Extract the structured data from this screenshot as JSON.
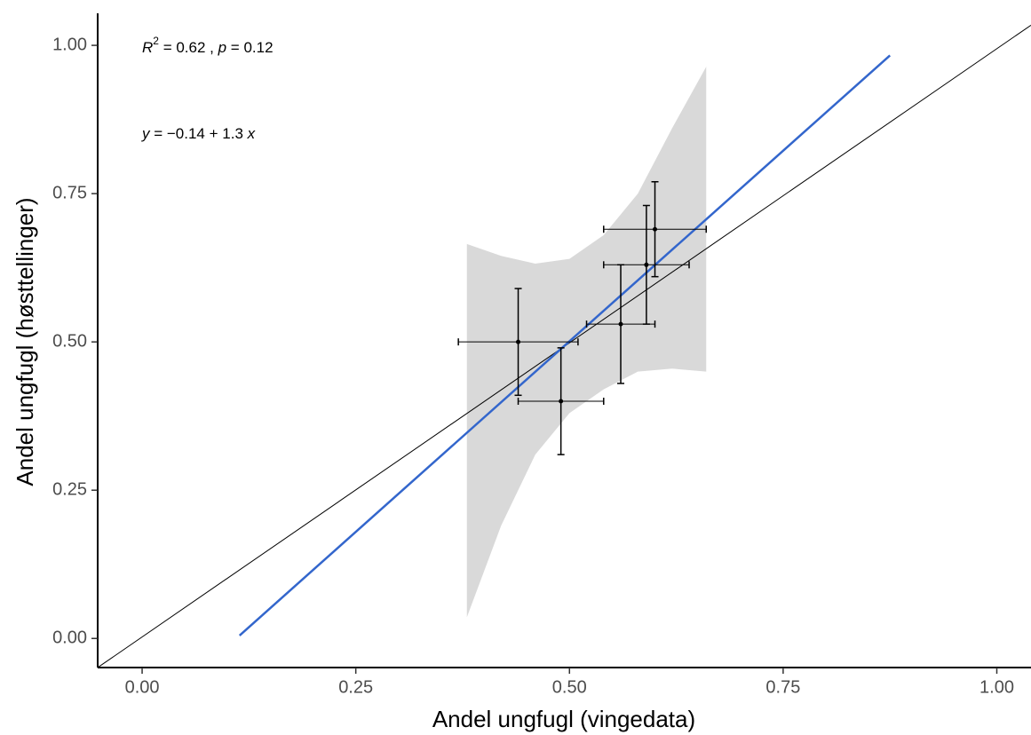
{
  "chart_data": {
    "type": "scatter",
    "x_label": "Andel ungfugl (vingedata)",
    "y_label": "Andel ungfugl (høsttellinger)",
    "annotations": [
      {
        "parts": [
          "R",
          "2",
          " = 0.62 , ",
          "p",
          " = 0.12"
        ]
      },
      {
        "parts": [
          "y",
          " = −0.14 + 1.3 ",
          "x"
        ]
      }
    ],
    "xlim": [
      -0.052,
      1.04
    ],
    "ylim": [
      -0.049,
      1.054
    ],
    "xticks": [
      {
        "value": 0,
        "label": "0.00"
      },
      {
        "value": 0.25,
        "label": "0.25"
      },
      {
        "value": 0.5,
        "label": "0.50"
      },
      {
        "value": 0.75,
        "label": "0.75"
      },
      {
        "value": 1,
        "label": "1.00"
      }
    ],
    "yticks": [
      {
        "value": 0,
        "label": "0.00"
      },
      {
        "value": 0.25,
        "label": "0.25"
      },
      {
        "value": 0.5,
        "label": "0.50"
      },
      {
        "value": 0.75,
        "label": "0.75"
      },
      {
        "value": 1,
        "label": "1.00"
      }
    ],
    "grid": false,
    "band": {
      "x": [
        0.38,
        0.42,
        0.46,
        0.5,
        0.54,
        0.58,
        0.62,
        0.66
      ],
      "lower": [
        0.036,
        0.19,
        0.31,
        0.38,
        0.42,
        0.45,
        0.455,
        0.45
      ],
      "upper": [
        0.665,
        0.645,
        0.632,
        0.64,
        0.68,
        0.75,
        0.86,
        0.964
      ],
      "color": "#d9d9d9"
    },
    "reference_line": {
      "x": [
        -0.052,
        1.04
      ],
      "values": [
        -0.049,
        1.034
      ],
      "color": "#000000"
    },
    "fit_line": {
      "x": [
        0.114,
        0.875
      ],
      "values": [
        0.005,
        0.983
      ],
      "color": "#3366cc"
    },
    "points": {
      "x": [
        0.44,
        0.49,
        0.56,
        0.59,
        0.6
      ],
      "values": [
        0.5,
        0.4,
        0.53,
        0.63,
        0.69
      ],
      "xerr": [
        0.07,
        0.05,
        0.04,
        0.05,
        0.06
      ],
      "yerr": [
        0.09,
        0.09,
        0.1,
        0.1,
        0.08
      ],
      "color": "#000000"
    }
  }
}
